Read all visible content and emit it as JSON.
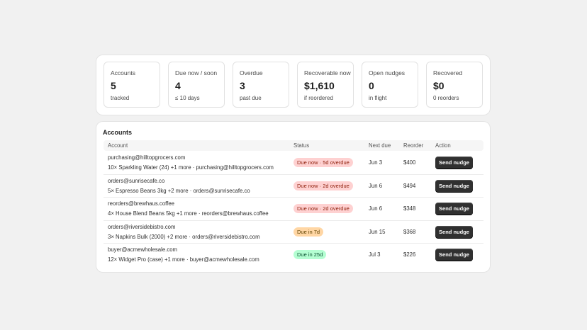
{
  "stats": [
    {
      "label": "Accounts",
      "value": "5",
      "sub": "tracked"
    },
    {
      "label": "Due now / soon",
      "value": "4",
      "sub": "≤ 10 days"
    },
    {
      "label": "Overdue",
      "value": "3",
      "sub": "past due"
    },
    {
      "label": "Recoverable now",
      "value": "$1,610",
      "sub": "if reordered"
    },
    {
      "label": "Open nudges",
      "value": "0",
      "sub": "in flight"
    },
    {
      "label": "Recovered",
      "value": "$0",
      "sub": "0 reorders"
    }
  ],
  "table": {
    "title": "Accounts",
    "columns": [
      "Account",
      "Status",
      "Next due",
      "Reorder",
      "Action"
    ],
    "rows": [
      {
        "email": "purchasing@hilltopgrocers.com",
        "detail": "10× Sparkling Water (24) +1 more · purchasing@hilltopgrocers.com",
        "status": "Due now · 5d overdue",
        "status_bg": "#fed1d1",
        "status_fg": "#8e1f0b",
        "next_due": "Jun 3",
        "reorder": "$400",
        "action": "Send nudge"
      },
      {
        "email": "orders@sunrisecafe.co",
        "detail": "5× Espresso Beans 3kg +2 more · orders@sunrisecafe.co",
        "status": "Due now · 2d overdue",
        "status_bg": "#fed1d1",
        "status_fg": "#8e1f0b",
        "next_due": "Jun 6",
        "reorder": "$494",
        "action": "Send nudge"
      },
      {
        "email": "reorders@brewhaus.coffee",
        "detail": "4× House Blend Beans 5kg +1 more · reorders@brewhaus.coffee",
        "status": "Due now · 2d overdue",
        "status_bg": "#fed1d1",
        "status_fg": "#8e1f0b",
        "next_due": "Jun 6",
        "reorder": "$348",
        "action": "Send nudge"
      },
      {
        "email": "orders@riversidebistro.com",
        "detail": "3× Napkins Bulk (2000) +2 more · orders@riversidebistro.com",
        "status": "Due in 7d",
        "status_bg": "#ffd6a4",
        "status_fg": "#5e4200",
        "next_due": "Jun 15",
        "reorder": "$368",
        "action": "Send nudge"
      },
      {
        "email": "buyer@acmewholesale.com",
        "detail": "12× Widget Pro (case) +1 more · buyer@acmewholesale.com",
        "status": "Due in 25d",
        "status_bg": "#b4fed2",
        "status_fg": "#0c5132",
        "next_due": "Jul 3",
        "reorder": "$226",
        "action": "Send nudge"
      }
    ]
  }
}
